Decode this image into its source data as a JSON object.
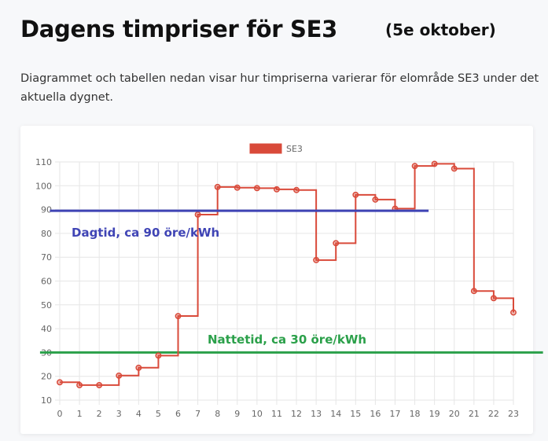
{
  "page": {
    "title": "Dagens timpriser för SE3",
    "date_label": "(5e oktober)",
    "description": "Diagrammet och tabellen nedan visar hur timpriserna varierar för elområde SE3 under det aktuella dygnet."
  },
  "chart_data": {
    "type": "line",
    "step": true,
    "legend_position": "top-center",
    "grid": true,
    "x": [
      0,
      1,
      2,
      3,
      4,
      5,
      6,
      7,
      8,
      9,
      10,
      11,
      12,
      13,
      14,
      15,
      16,
      17,
      18,
      19,
      20,
      21,
      22,
      23
    ],
    "x_ticks": [
      "0",
      "1",
      "2",
      "3",
      "4",
      "5",
      "6",
      "7",
      "8",
      "9",
      "10",
      "11",
      "12",
      "13",
      "14",
      "15",
      "16",
      "17",
      "18",
      "19",
      "20",
      "21",
      "22",
      "23"
    ],
    "ylim": [
      10,
      110
    ],
    "y_ticks": [
      "10",
      "20",
      "30",
      "40",
      "50",
      "60",
      "70",
      "80",
      "90",
      "100",
      "110"
    ],
    "xlabel": "",
    "ylabel": "",
    "series": [
      {
        "name": "SE3",
        "color": "#d94a3a",
        "values": [
          17.5,
          16.3,
          16.3,
          20.3,
          23.6,
          28.7,
          45.3,
          87.9,
          99.5,
          99.2,
          99.0,
          98.5,
          98.2,
          68.8,
          75.9,
          96.2,
          94.2,
          90.4,
          108.3,
          109.2,
          107.2,
          55.8,
          52.8,
          46.8
        ]
      }
    ],
    "annotations": [
      {
        "label": "Dagtid, ca 90 öre/kWh",
        "value": 89.5,
        "x_from": -0.5,
        "x_to": 18.7,
        "color": "#3f44b5"
      },
      {
        "label": "Nattetid, ca 30 öre/kWh",
        "value": 30,
        "x_from": -1,
        "x_to": 24.5,
        "color": "#2ba04a"
      }
    ]
  }
}
